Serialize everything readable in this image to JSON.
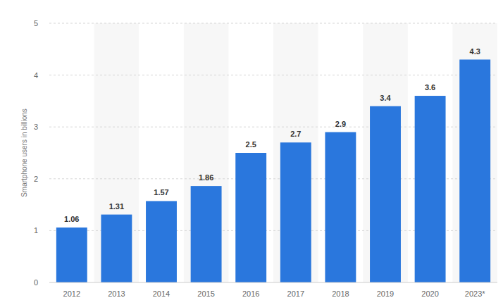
{
  "chart_data": {
    "type": "bar",
    "y_label": "Smartphone users in billions",
    "categories": [
      "2012",
      "2013",
      "2014",
      "2015",
      "2016",
      "2017",
      "2018",
      "2019",
      "2020",
      "2023*"
    ],
    "values": [
      1.06,
      1.31,
      1.57,
      1.86,
      2.5,
      2.7,
      2.9,
      3.4,
      3.6,
      4.3
    ],
    "color": "#2a77dd",
    "ylim": [
      0,
      5
    ],
    "yticks": [
      0,
      1,
      2,
      3,
      4,
      5
    ],
    "grid": true,
    "data_labels": true
  }
}
